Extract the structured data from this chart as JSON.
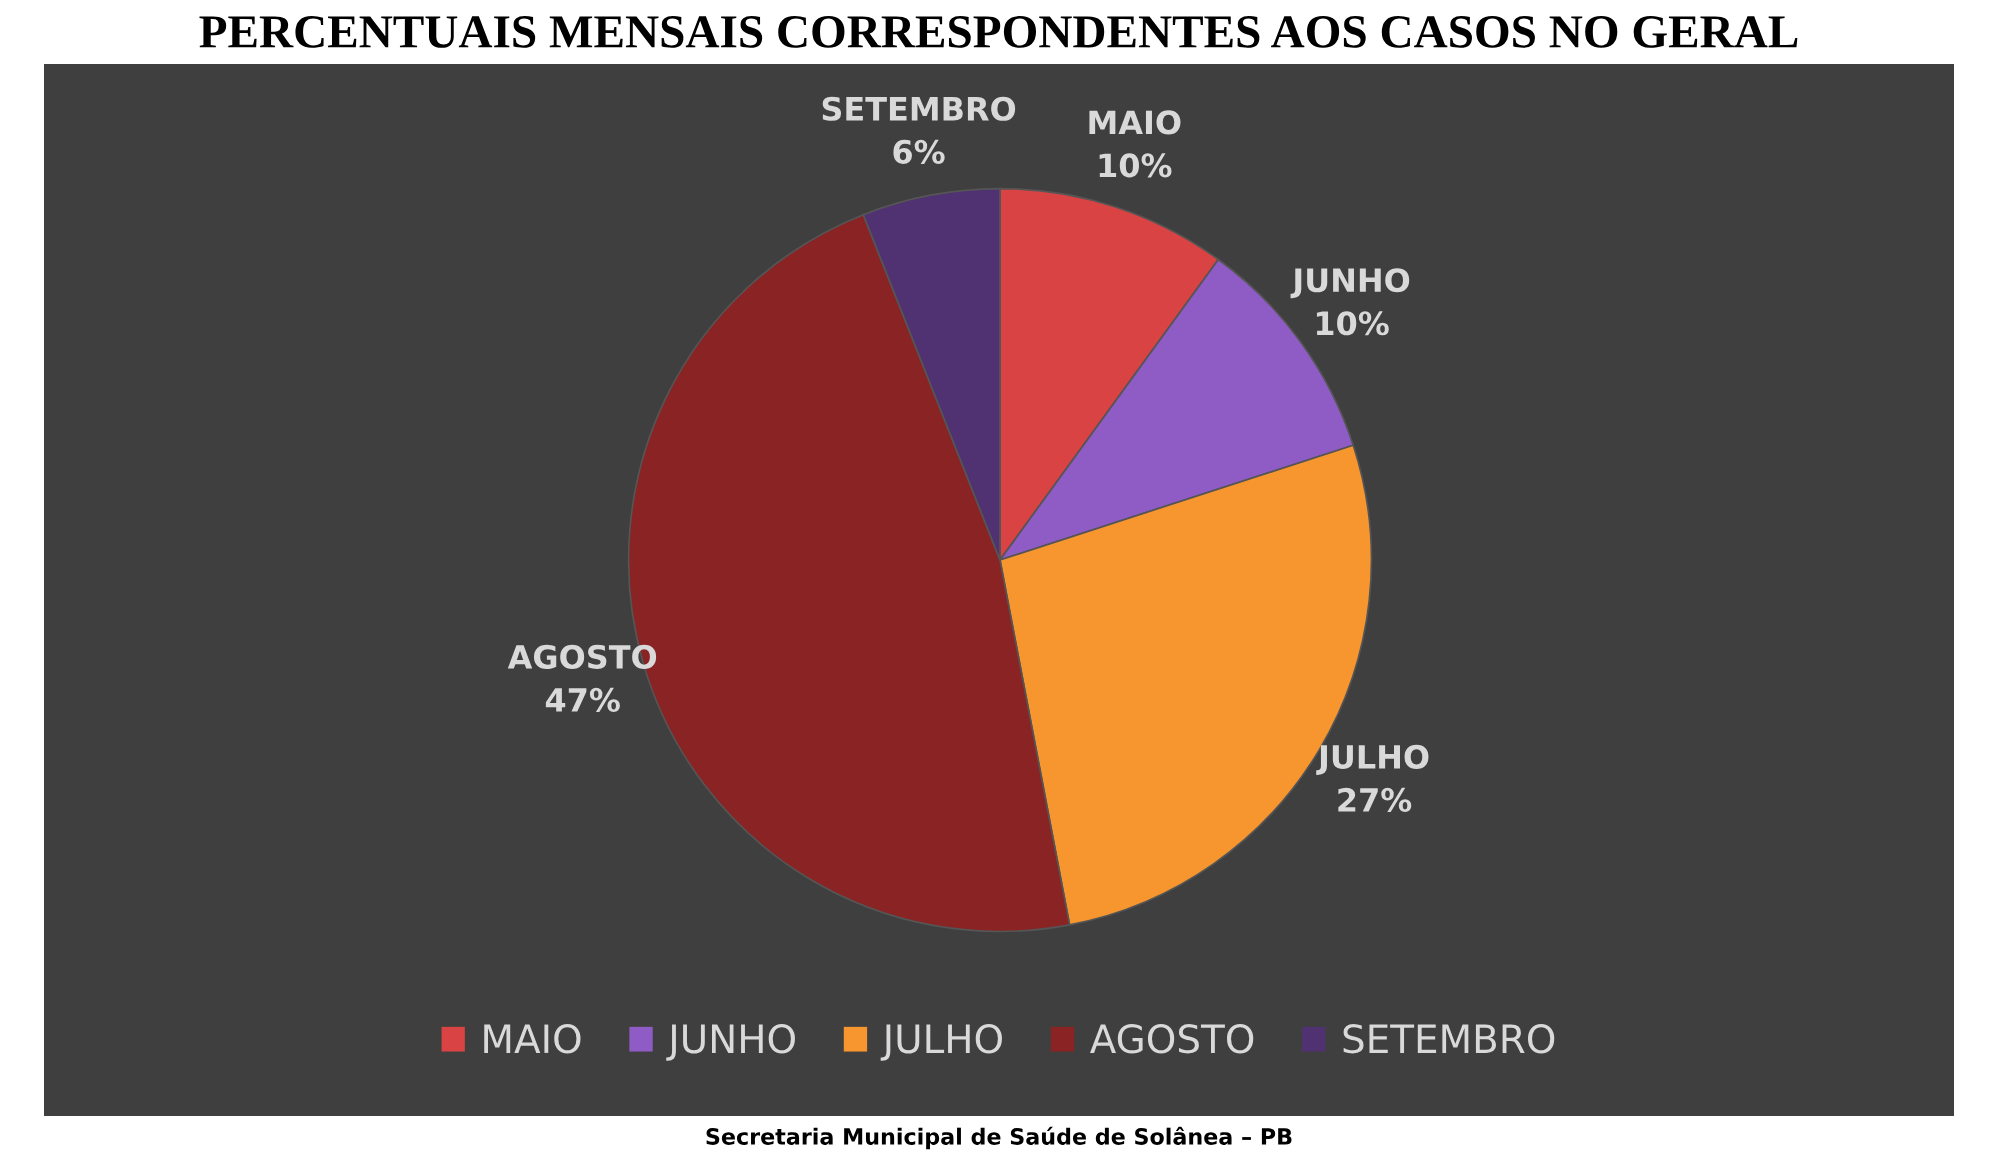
{
  "chart_data": {
    "type": "pie",
    "title": "PERCENTUAIS MENSAIS CORRESPONDENTES AOS CASOS NO GERAL",
    "categories": [
      "MAIO",
      "JUNHO",
      "JULHO",
      "AGOSTO",
      "SETEMBRO"
    ],
    "values": [
      10,
      10,
      27,
      47,
      6
    ],
    "value_labels": [
      "10%",
      "10%",
      "27%",
      "47%",
      "6%"
    ],
    "colors": [
      "#d94343",
      "#8e5cc4",
      "#f7962e",
      "#8a2323",
      "#503272"
    ],
    "legend": "bottom",
    "annotations": [
      "Secretaria Municipal de Saúde de Solânea – PB"
    ]
  }
}
